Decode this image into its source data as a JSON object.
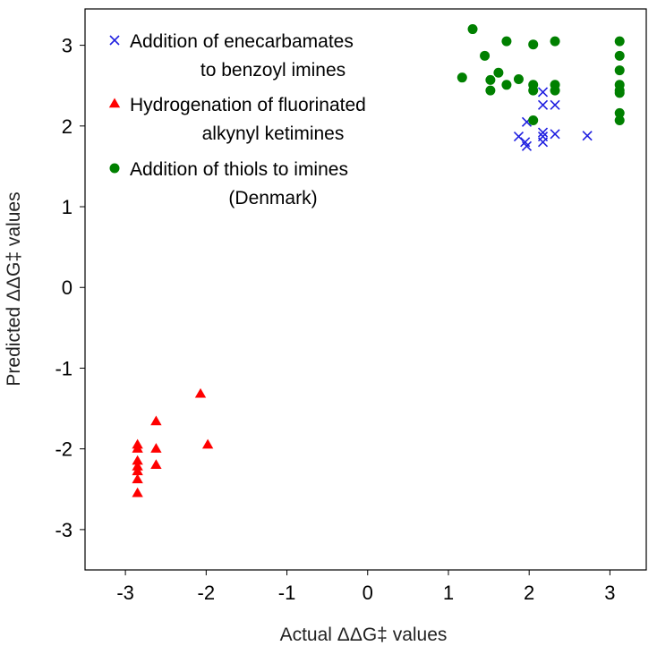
{
  "chart_data": {
    "type": "scatter",
    "xlabel": "Actual ΔΔG‡ values",
    "ylabel": "Predicted ΔΔG‡ values",
    "xlim": [
      -3.5,
      3.45
    ],
    "ylim": [
      -3.5,
      3.45
    ],
    "xticks": [
      -3,
      -2,
      -1,
      0,
      1,
      2,
      3
    ],
    "yticks": [
      -3,
      -2,
      -1,
      0,
      1,
      2,
      3
    ],
    "xtick_labels": [
      "-3",
      "-2",
      "-1",
      "0",
      "1",
      "2",
      "3"
    ],
    "ytick_labels": [
      "-3",
      "-2",
      "-1",
      "0",
      "1",
      "2",
      "3"
    ],
    "grid": false,
    "legend_position": "top-left",
    "series": [
      {
        "name": "Addition of enecarbamates to benzoyl imines",
        "name_lines": [
          "Addition of enecarbamates",
          "to benzoyl imines"
        ],
        "marker": "x",
        "color": "#1f1fe0",
        "points": [
          [
            1.87,
            1.87
          ],
          [
            1.95,
            1.8
          ],
          [
            1.97,
            1.75
          ],
          [
            1.97,
            2.05
          ],
          [
            2.17,
            2.42
          ],
          [
            2.17,
            2.26
          ],
          [
            2.17,
            1.92
          ],
          [
            2.17,
            1.87
          ],
          [
            2.17,
            1.8
          ],
          [
            2.32,
            2.26
          ],
          [
            2.32,
            1.9
          ],
          [
            2.72,
            1.88
          ]
        ]
      },
      {
        "name": "Hydrogenation of fluorinated alkynyl ketimines",
        "name_lines": [
          "Hydrogenation of fluorinated",
          "alkynyl ketimines"
        ],
        "marker": "triangle",
        "color": "#ff0000",
        "points": [
          [
            -2.85,
            -1.95
          ],
          [
            -2.85,
            -2.0
          ],
          [
            -2.85,
            -2.15
          ],
          [
            -2.85,
            -2.22
          ],
          [
            -2.85,
            -2.28
          ],
          [
            -2.85,
            -2.38
          ],
          [
            -2.85,
            -2.55
          ],
          [
            -2.62,
            -1.66
          ],
          [
            -2.62,
            -2.0
          ],
          [
            -2.62,
            -2.2
          ],
          [
            -2.07,
            -1.32
          ],
          [
            -1.98,
            -1.95
          ]
        ]
      },
      {
        "name": "Addition of thiols to imines (Denmark)",
        "name_lines": [
          "Addition of thiols to imines",
          "(Denmark)"
        ],
        "marker": "circle",
        "color": "#008000",
        "points": [
          [
            1.17,
            2.6
          ],
          [
            1.3,
            3.2
          ],
          [
            1.45,
            2.87
          ],
          [
            1.52,
            2.57
          ],
          [
            1.52,
            2.44
          ],
          [
            1.62,
            2.66
          ],
          [
            1.72,
            3.05
          ],
          [
            1.72,
            2.51
          ],
          [
            1.87,
            2.58
          ],
          [
            2.05,
            3.01
          ],
          [
            2.05,
            2.51
          ],
          [
            2.05,
            2.44
          ],
          [
            2.05,
            2.07
          ],
          [
            2.32,
            3.05
          ],
          [
            2.32,
            2.51
          ],
          [
            2.32,
            2.44
          ],
          [
            3.12,
            3.05
          ],
          [
            3.12,
            2.87
          ],
          [
            3.12,
            2.69
          ],
          [
            3.12,
            2.51
          ],
          [
            3.12,
            2.44
          ],
          [
            3.12,
            2.41
          ],
          [
            3.12,
            2.16
          ],
          [
            3.12,
            2.07
          ]
        ]
      }
    ]
  }
}
